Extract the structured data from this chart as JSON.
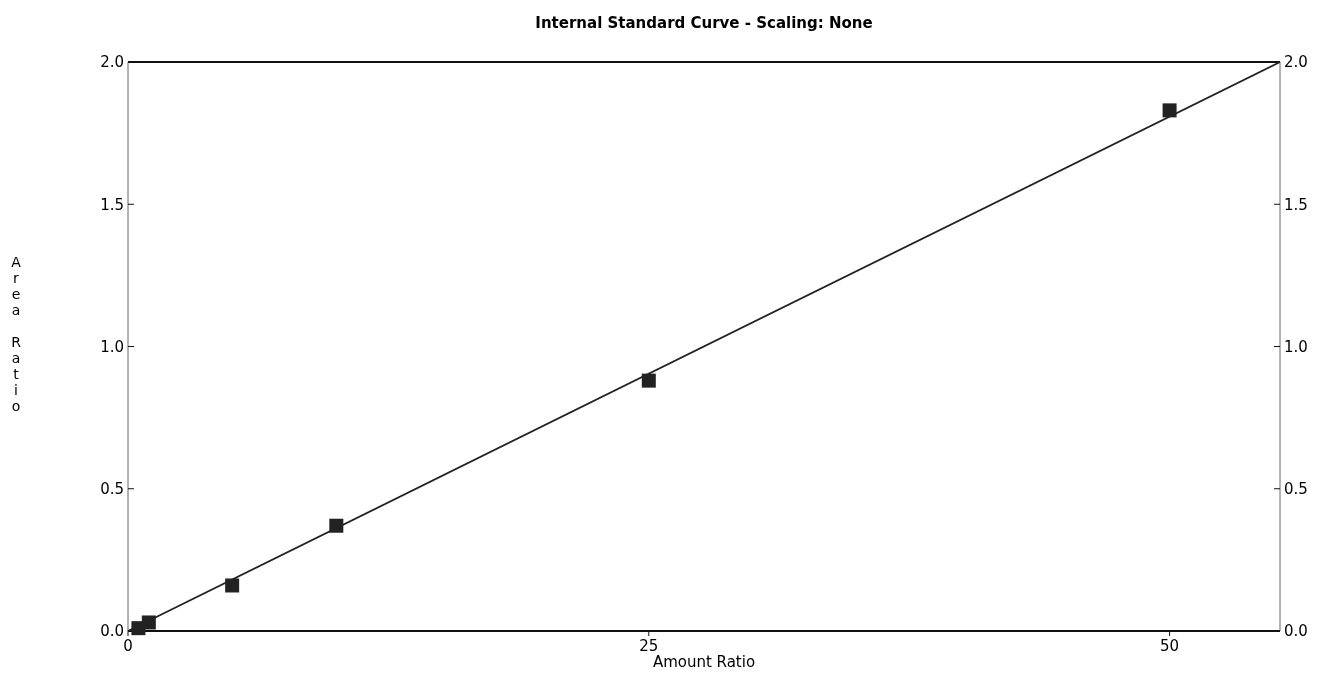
{
  "chart_data": {
    "type": "scatter",
    "title": "Internal Standard Curve - Scaling: None",
    "xlabel": "Amount Ratio",
    "ylabel": "Area Ratio",
    "xlim": [
      0,
      55.3
    ],
    "xticks": [
      0,
      25,
      50
    ],
    "ylim": [
      0,
      2
    ],
    "yticks": [
      {
        "value": 0,
        "label": "0.0"
      },
      {
        "value": 0.5,
        "label": "0.5"
      },
      {
        "value": 1,
        "label": "1.0"
      },
      {
        "value": 1.5,
        "label": "1.5"
      },
      {
        "value": 2,
        "label": "2.0"
      }
    ],
    "y2lim": [
      0,
      2
    ],
    "y2ticks": [
      {
        "value": 0,
        "label": "0.0"
      },
      {
        "value": 0.5,
        "label": "0.5"
      },
      {
        "value": 1,
        "label": "1.0"
      },
      {
        "value": 1.5,
        "label": "1.5"
      },
      {
        "value": 2,
        "label": "2.0"
      }
    ],
    "grid": false,
    "series": [
      {
        "color": "#222222",
        "marker": "square",
        "x": [
          0.5,
          1,
          5,
          10,
          25,
          50
        ],
        "values": [
          0.01,
          0.03,
          0.16,
          0.37,
          0.88,
          1.83
        ]
      },
      {
        "type": "line",
        "color": "#222222",
        "line_style": "solid",
        "marker": "none",
        "x": [
          0,
          55.3
        ],
        "values": [
          0,
          2
        ]
      }
    ]
  }
}
